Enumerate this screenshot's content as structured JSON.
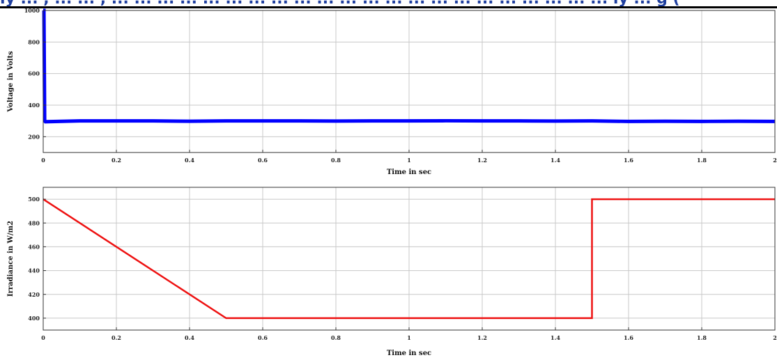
{
  "header": {
    "text": "ly ... , ... ... , ... ... ... ... ... ... ... ... ... ... ... ... ... ... ... ... ... ... ... ... ... ... ly ... g (",
    "color": "#1f3f9f"
  },
  "chart_data": [
    {
      "type": "line",
      "title": "",
      "xlabel": "Time in sec",
      "ylabel": "Voltage in Volts",
      "xlim": [
        0,
        2
      ],
      "ylim": [
        100,
        1000
      ],
      "xticks": [
        0,
        0.2,
        0.4,
        0.6,
        0.8,
        1,
        1.2,
        1.4,
        1.6,
        1.8,
        2
      ],
      "xtick_labels": [
        "0",
        "0.2",
        "0.4",
        "0.6",
        "0.8",
        "1",
        "1.2",
        "1.4",
        "1.6",
        "1.8",
        "2"
      ],
      "yticks": [
        200,
        400,
        600,
        800,
        1000
      ],
      "ytick_labels": [
        "200",
        "400",
        "600",
        "800",
        "1000"
      ],
      "grid": true,
      "series": [
        {
          "color": "#0000ff",
          "x": [
            0,
            0.002,
            0.004,
            0.006,
            0.1,
            0.2,
            0.3,
            0.4,
            0.5,
            0.6,
            0.7,
            0.8,
            0.9,
            1.0,
            1.1,
            1.2,
            1.3,
            1.4,
            1.5,
            1.6,
            1.7,
            1.8,
            1.9,
            2.0
          ],
          "y": [
            1000,
            1000,
            300,
            295,
            300,
            300,
            300,
            298,
            300,
            300,
            300,
            299,
            300,
            300,
            301,
            300,
            300,
            299,
            300,
            297,
            298,
            297,
            298,
            297
          ],
          "band": 22
        }
      ]
    },
    {
      "type": "line",
      "title": "",
      "xlabel": "Time in sec",
      "ylabel": "Irradiance in W/m2",
      "xlim": [
        0,
        2
      ],
      "ylim": [
        390,
        510
      ],
      "xticks": [
        0,
        0.2,
        0.4,
        0.6,
        0.8,
        1,
        1.2,
        1.4,
        1.6,
        1.8,
        2
      ],
      "xtick_labels": [
        "0",
        "0.2",
        "0.4",
        "0.6",
        "0.8",
        "1",
        "1.2",
        "1.4",
        "1.6",
        "1.8",
        "2"
      ],
      "yticks": [
        400,
        420,
        440,
        460,
        480,
        500
      ],
      "ytick_labels": [
        "400",
        "420",
        "440",
        "460",
        "480",
        "500"
      ],
      "grid": true,
      "series": [
        {
          "color": "#ee1111",
          "x": [
            0,
            0.5,
            1.5,
            1.5,
            2
          ],
          "y": [
            500,
            400,
            400,
            500,
            500
          ]
        }
      ]
    }
  ]
}
